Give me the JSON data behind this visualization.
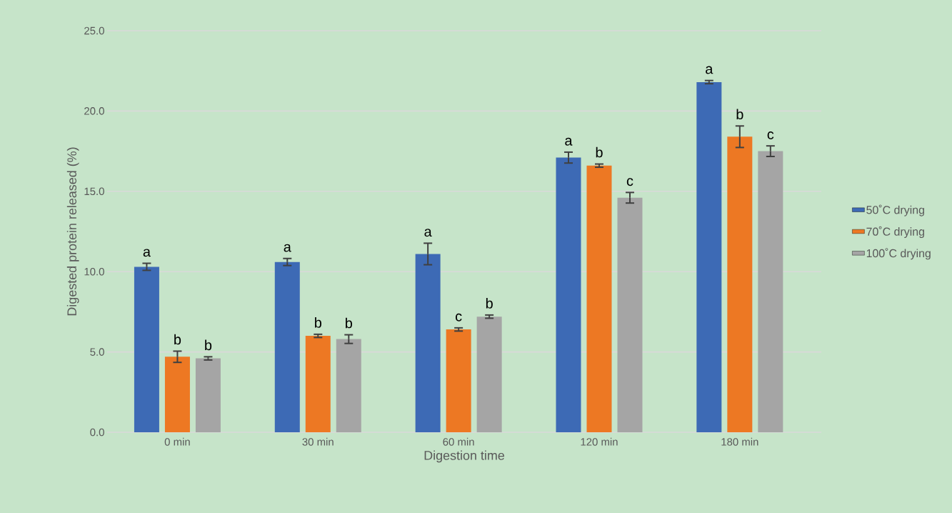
{
  "chart_data": {
    "type": "bar",
    "xlabel": "Digestion time",
    "ylabel": "Digested protein released (%)",
    "categories": [
      "0 min",
      "30 min",
      "60 min",
      "120 min",
      "180 min"
    ],
    "series": [
      {
        "name": "50˚C drying",
        "color": "#3d6ab5",
        "values": [
          10.3,
          10.6,
          11.1,
          17.1,
          21.8
        ],
        "errors": [
          0.22,
          0.22,
          0.67,
          0.34,
          0.1
        ],
        "value_labels": [
          "a",
          "a",
          "a",
          "a",
          "a"
        ]
      },
      {
        "name": "70˚C drying",
        "color": "#ed7823",
        "values": [
          4.7,
          6.0,
          6.4,
          16.6,
          18.4
        ],
        "errors": [
          0.35,
          0.1,
          0.1,
          0.1,
          0.67
        ],
        "value_labels": [
          "b",
          "b",
          "c",
          "b",
          "b"
        ]
      },
      {
        "name": "100˚C drying",
        "color": "#a5a5a5",
        "values": [
          4.6,
          5.8,
          7.2,
          14.6,
          17.5
        ],
        "errors": [
          0.1,
          0.27,
          0.1,
          0.33,
          0.33
        ],
        "value_labels": [
          "b",
          "b",
          "b",
          "c",
          "c"
        ]
      }
    ],
    "ylim": [
      0,
      25
    ],
    "yticks": [
      {
        "value": 0,
        "label": "0.0"
      },
      {
        "value": 5,
        "label": "5.0"
      },
      {
        "value": 10,
        "label": "10.0"
      },
      {
        "value": 15,
        "label": "15.0"
      },
      {
        "value": 20,
        "label": "20.0"
      },
      {
        "value": 25,
        "label": "25.0"
      }
    ],
    "grid": "y",
    "legend": "right"
  }
}
